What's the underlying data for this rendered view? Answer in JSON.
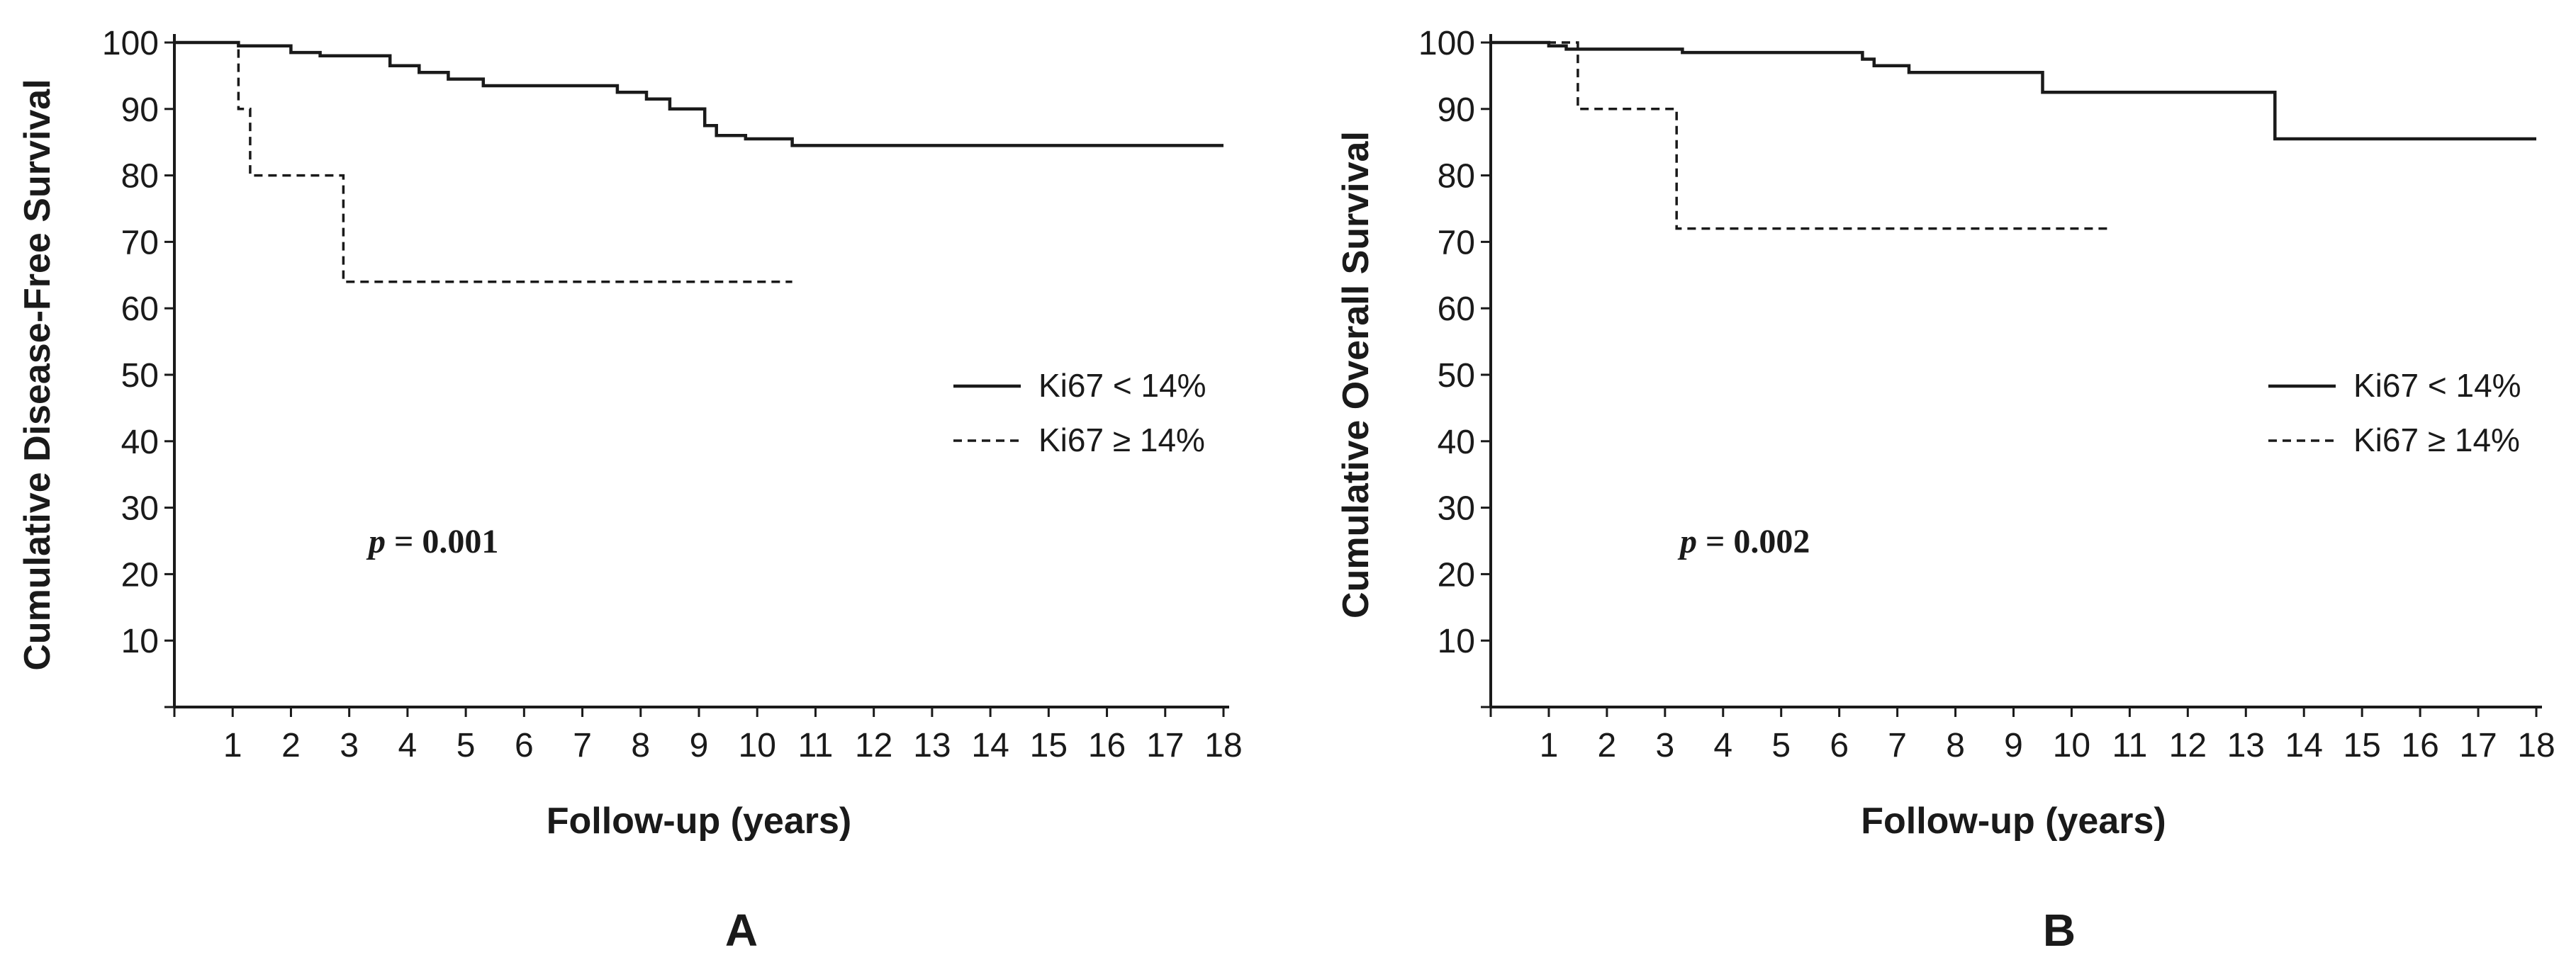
{
  "chart_data": [
    {
      "type": "line",
      "panel_label": "A",
      "xlabel": "Follow-up (years)",
      "ylabel": "Cumulative Disease-Free Survival",
      "xlim": [
        0,
        18
      ],
      "ylim": [
        0,
        100
      ],
      "x_ticks": [
        "1",
        "2",
        "3",
        "4",
        "5",
        "6",
        "7",
        "8",
        "9",
        "10",
        "11",
        "12",
        "13",
        "14",
        "15",
        "16",
        "17",
        "18"
      ],
      "y_ticks": [
        "10",
        "20",
        "30",
        "40",
        "50",
        "60",
        "70",
        "80",
        "90",
        "100"
      ],
      "grid": false,
      "legend_position": "right",
      "annotation": {
        "italic": "p",
        "text": " = 0.001"
      },
      "series": [
        {
          "name": "Ki67 < 14%",
          "style": "solid",
          "x": [
            0,
            1.1,
            1.1,
            2.0,
            2.0,
            2.5,
            2.5,
            3.7,
            3.7,
            4.2,
            4.2,
            4.7,
            4.7,
            5.3,
            5.3,
            7.6,
            7.6,
            8.1,
            8.1,
            8.5,
            8.5,
            9.1,
            9.1,
            9.3,
            9.3,
            9.8,
            9.8,
            10.6,
            10.6,
            18.0
          ],
          "y": [
            100,
            100,
            99.5,
            99.5,
            98.5,
            98.5,
            98,
            98,
            96.5,
            96.5,
            95.5,
            95.5,
            94.5,
            94.5,
            93.5,
            93.5,
            92.5,
            92.5,
            91.5,
            91.5,
            90,
            90,
            87.5,
            87.5,
            86,
            86,
            85.5,
            85.5,
            84.5,
            84.5
          ]
        },
        {
          "name": "Ki67 ≥ 14%",
          "style": "dashed",
          "x": [
            0,
            1.1,
            1.1,
            1.3,
            1.3,
            2.9,
            2.9,
            10.6
          ],
          "y": [
            100,
            100,
            90,
            90,
            80,
            80,
            64,
            64
          ]
        }
      ]
    },
    {
      "type": "line",
      "panel_label": "B",
      "xlabel": "Follow-up (years)",
      "ylabel": "Cumulative Overall Survival",
      "xlim": [
        0,
        18
      ],
      "ylim": [
        0,
        100
      ],
      "x_ticks": [
        "1",
        "2",
        "3",
        "4",
        "5",
        "6",
        "7",
        "8",
        "9",
        "10",
        "11",
        "12",
        "13",
        "14",
        "15",
        "16",
        "17",
        "18"
      ],
      "y_ticks": [
        "10",
        "20",
        "30",
        "40",
        "50",
        "60",
        "70",
        "80",
        "90",
        "100"
      ],
      "grid": false,
      "legend_position": "right",
      "annotation": {
        "italic": "p",
        "text": " = 0.002"
      },
      "series": [
        {
          "name": "Ki67 < 14%",
          "style": "solid",
          "x": [
            0,
            1.0,
            1.0,
            1.3,
            1.3,
            3.3,
            3.3,
            6.4,
            6.4,
            6.6,
            6.6,
            7.2,
            7.2,
            9.5,
            9.5,
            13.5,
            13.5,
            18.0
          ],
          "y": [
            100,
            100,
            99.5,
            99.5,
            99,
            99,
            98.5,
            98.5,
            97.5,
            97.5,
            96.5,
            96.5,
            95.5,
            95.5,
            92.5,
            92.5,
            85.5,
            85.5
          ]
        },
        {
          "name": "Ki67 ≥ 14%",
          "style": "dashed",
          "x": [
            0,
            1.5,
            1.5,
            3.2,
            3.2,
            10.7
          ],
          "y": [
            100,
            100,
            90,
            90,
            72,
            72
          ]
        }
      ]
    }
  ]
}
